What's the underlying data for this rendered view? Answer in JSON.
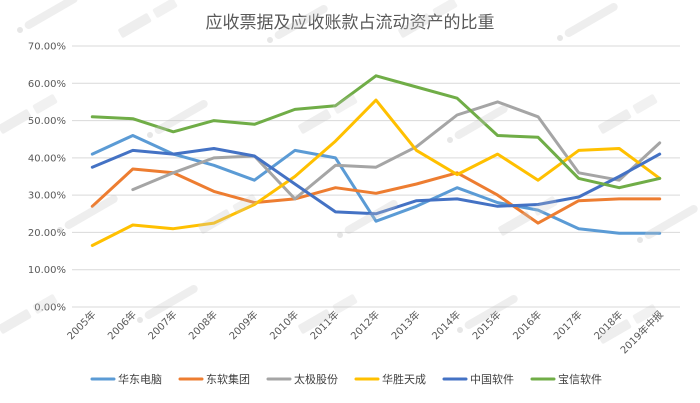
{
  "chart_data": {
    "type": "line",
    "title": "应收票据及应收账款占流动资产的比重",
    "xlabel": "",
    "ylabel": "",
    "categories": [
      "2005年",
      "2006年",
      "2007年",
      "2008年",
      "2009年",
      "2010年",
      "2011年",
      "2012年",
      "2013年",
      "2014年",
      "2015年",
      "2016年",
      "2017年",
      "2018年",
      "2019年中报"
    ],
    "ylim": [
      0,
      70
    ],
    "yticks": [
      "0.00%",
      "10.00%",
      "20.00%",
      "30.00%",
      "40.00%",
      "50.00%",
      "60.00%",
      "70.00%"
    ],
    "grid": true,
    "legend_position": "bottom",
    "series": [
      {
        "name": "华东电脑",
        "color": "#5b9bd5",
        "values": [
          41.0,
          46.0,
          41.0,
          38.0,
          34.0,
          42.0,
          40.0,
          23.0,
          27.0,
          32.0,
          28.0,
          26.0,
          21.0,
          19.8,
          19.8
        ]
      },
      {
        "name": "东软集团",
        "color": "#ed7d31",
        "values": [
          27.0,
          37.0,
          36.0,
          31.0,
          28.0,
          29.0,
          32.0,
          30.5,
          33.0,
          36.0,
          30.0,
          22.5,
          28.5,
          29.0,
          29.0
        ]
      },
      {
        "name": "太极股份",
        "color": "#a5a5a5",
        "values": [
          null,
          31.5,
          36.0,
          40.0,
          40.5,
          29.0,
          38.0,
          37.5,
          43.0,
          51.5,
          55.0,
          51.0,
          36.0,
          34.0,
          44.0
        ]
      },
      {
        "name": "华胜天成",
        "color": "#ffc000",
        "values": [
          16.5,
          22.0,
          21.0,
          22.5,
          27.5,
          35.0,
          44.5,
          55.5,
          42.0,
          35.5,
          41.0,
          34.0,
          42.0,
          42.5,
          34.5
        ]
      },
      {
        "name": "中国软件",
        "color": "#4472c4",
        "values": [
          37.5,
          42.0,
          41.0,
          42.5,
          40.5,
          33.0,
          25.5,
          25.0,
          28.5,
          29.0,
          27.0,
          27.5,
          29.5,
          35.0,
          41.0
        ]
      },
      {
        "name": "宝信软件",
        "color": "#70ad47",
        "values": [
          51.0,
          50.5,
          47.0,
          50.0,
          49.0,
          53.0,
          54.0,
          62.0,
          59.0,
          56.0,
          46.0,
          45.5,
          34.5,
          32.0,
          34.5
        ]
      }
    ]
  }
}
